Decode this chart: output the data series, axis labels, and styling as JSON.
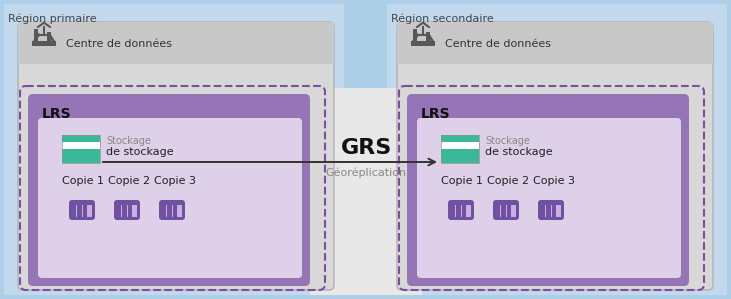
{
  "region_primary_label": "Région primaire",
  "region_secondary_label": "Région secondaire",
  "datacenter_label": "Centre de données",
  "lrs_label": "LRS",
  "grs_label": "GRS",
  "geo_label": "Géoréplication",
  "storage_label1": "Stockage",
  "storage_label2": "de stockage",
  "copy_labels": [
    "Copie 1",
    "Copie 2",
    "Copie 3"
  ],
  "bg_color": "#aecfe8",
  "region_left_color": "#c2d9ed",
  "region_right_color": "#c2d9ed",
  "grs_mid_color": "#e8e8e8",
  "datacenter_box_color": "#d8d8d8",
  "datacenter_header_color": "#c8c8c8",
  "lrs_outer_color": "#9575b5",
  "lrs_inner_color": "#ddd0e8",
  "dashed_border_color": "#7a4fa0",
  "storage_colors": [
    "#3db890",
    "#ffffff",
    "#3db890",
    "#3db890"
  ],
  "copy_outer_color": "#7050a0",
  "copy_inner_color": "#c8b0e0",
  "arrow_color": "#333333",
  "text_dark": "#222222",
  "text_gray": "#888888",
  "text_region": "#444444"
}
